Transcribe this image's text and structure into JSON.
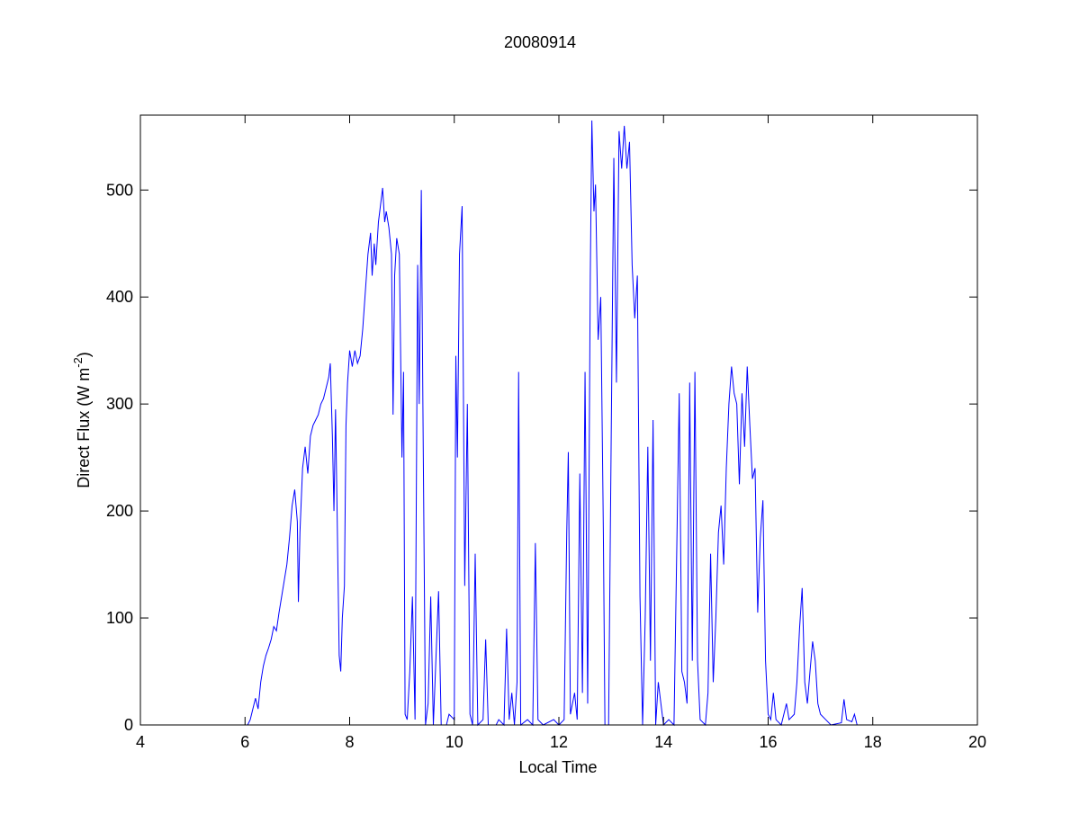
{
  "chart_data": {
    "type": "line",
    "title": "20080914",
    "xlabel": "Local Time",
    "ylabel": [
      "Direct Flux (W m",
      "-2",
      ")"
    ],
    "xlim": [
      4,
      20
    ],
    "xticks": [
      4,
      6,
      8,
      10,
      12,
      14,
      16,
      18,
      20
    ],
    "ylim": [
      0,
      570
    ],
    "yticks": [
      0,
      100,
      200,
      300,
      400,
      500
    ],
    "grid": false,
    "box": true,
    "series": [
      {
        "color": "#0000ff",
        "x": [
          4.35,
          4.42,
          5.0,
          6.0,
          6.05,
          6.1,
          6.15,
          6.2,
          6.25,
          6.3,
          6.35,
          6.4,
          6.45,
          6.5,
          6.55,
          6.6,
          6.65,
          6.7,
          6.75,
          6.8,
          6.85,
          6.9,
          6.95,
          7.0,
          7.02,
          7.05,
          7.1,
          7.15,
          7.2,
          7.25,
          7.3,
          7.35,
          7.4,
          7.45,
          7.5,
          7.55,
          7.6,
          7.63,
          7.67,
          7.7,
          7.73,
          7.76,
          7.8,
          7.83,
          7.86,
          7.9,
          7.93,
          7.96,
          8.0,
          8.05,
          8.1,
          8.15,
          8.2,
          8.25,
          8.3,
          8.35,
          8.4,
          8.43,
          8.47,
          8.5,
          8.55,
          8.6,
          8.63,
          8.67,
          8.7,
          8.75,
          8.8,
          8.83,
          8.86,
          8.9,
          8.95,
          9.0,
          9.03,
          9.06,
          9.1,
          9.15,
          9.2,
          9.25,
          9.3,
          9.33,
          9.37,
          9.4,
          9.45,
          9.5,
          9.55,
          9.6,
          9.7,
          9.75,
          9.85,
          9.9,
          10.0,
          10.03,
          10.06,
          10.1,
          10.15,
          10.2,
          10.25,
          10.3,
          10.35,
          10.4,
          10.45,
          10.55,
          10.6,
          10.65,
          10.8,
          10.85,
          10.95,
          11.0,
          11.05,
          11.1,
          11.15,
          11.2,
          11.23,
          11.27,
          11.4,
          11.5,
          11.55,
          11.6,
          11.7,
          11.9,
          12.0,
          12.1,
          12.15,
          12.18,
          12.22,
          12.3,
          12.35,
          12.4,
          12.45,
          12.5,
          12.55,
          12.6,
          12.63,
          12.67,
          12.7,
          12.75,
          12.8,
          12.85,
          12.88,
          12.95,
          13.0,
          13.05,
          13.1,
          13.15,
          13.2,
          13.25,
          13.3,
          13.35,
          13.4,
          13.45,
          13.5,
          13.55,
          13.6,
          13.65,
          13.7,
          13.75,
          13.8,
          13.85,
          13.9,
          14.0,
          14.1,
          14.2,
          14.3,
          14.35,
          14.4,
          14.45,
          14.5,
          14.55,
          14.6,
          14.65,
          14.7,
          14.8,
          14.85,
          14.9,
          14.95,
          15.0,
          15.05,
          15.1,
          15.15,
          15.2,
          15.25,
          15.3,
          15.35,
          15.4,
          15.45,
          15.5,
          15.55,
          15.6,
          15.65,
          15.7,
          15.75,
          15.8,
          15.85,
          15.9,
          15.95,
          16.0,
          16.05,
          16.1,
          16.15,
          16.25,
          16.35,
          16.4,
          16.5,
          16.55,
          16.6,
          16.65,
          16.7,
          16.75,
          16.8,
          16.85,
          16.9,
          16.95,
          17.0,
          17.1,
          17.2,
          17.4,
          17.45,
          17.5,
          17.6,
          17.65,
          17.7,
          18.0,
          18.5,
          19.4,
          19.5
        ],
        "values": [
          0,
          0,
          null,
          0,
          0,
          5,
          15,
          25,
          15,
          40,
          55,
          65,
          72,
          80,
          92,
          88,
          105,
          120,
          135,
          150,
          175,
          205,
          220,
          190,
          115,
          180,
          240,
          260,
          235,
          270,
          280,
          285,
          290,
          300,
          305,
          315,
          325,
          338,
          270,
          200,
          295,
          200,
          65,
          50,
          100,
          130,
          280,
          320,
          350,
          335,
          350,
          338,
          345,
          370,
          405,
          440,
          460,
          420,
          450,
          430,
          470,
          490,
          502,
          470,
          480,
          465,
          440,
          290,
          420,
          455,
          440,
          250,
          330,
          10,
          5,
          50,
          120,
          5,
          430,
          300,
          500,
          300,
          0,
          20,
          120,
          0,
          125,
          0,
          0,
          10,
          5,
          345,
          250,
          440,
          485,
          130,
          300,
          10,
          0,
          160,
          0,
          5,
          80,
          0,
          0,
          5,
          0,
          90,
          5,
          30,
          0,
          40,
          330,
          0,
          5,
          0,
          170,
          5,
          0,
          5,
          0,
          5,
          180,
          255,
          10,
          30,
          5,
          235,
          30,
          330,
          20,
          420,
          565,
          480,
          505,
          360,
          400,
          180,
          0,
          0,
          270,
          530,
          320,
          555,
          520,
          560,
          520,
          545,
          430,
          380,
          420,
          120,
          0,
          100,
          260,
          60,
          285,
          0,
          40,
          0,
          5,
          0,
          310,
          50,
          40,
          20,
          320,
          60,
          330,
          60,
          5,
          0,
          30,
          160,
          40,
          100,
          180,
          205,
          150,
          240,
          300,
          335,
          310,
          300,
          225,
          310,
          260,
          335,
          280,
          230,
          240,
          105,
          175,
          210,
          60,
          10,
          5,
          30,
          5,
          0,
          20,
          5,
          10,
          40,
          90,
          128,
          40,
          20,
          50,
          78,
          60,
          20,
          10,
          5,
          0,
          2,
          24,
          5,
          3,
          10,
          0,
          0,
          null,
          0,
          0
        ]
      }
    ]
  }
}
